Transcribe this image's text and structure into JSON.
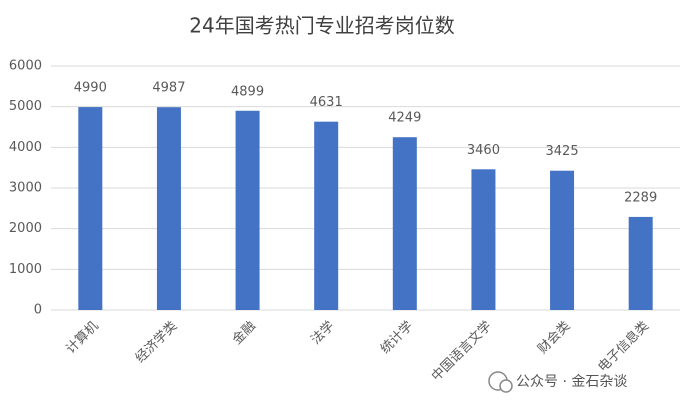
{
  "chart_data": {
    "type": "bar",
    "title": "24年国考热门专业招考岗位数",
    "categories": [
      "计算机",
      "经济学类",
      "金融",
      "法学",
      "统计学",
      "中国语言文学",
      "财会类",
      "电子信息类"
    ],
    "values": [
      4990,
      4987,
      4899,
      4631,
      4249,
      3460,
      3425,
      2289
    ],
    "color": "#4472c4",
    "ylim": [
      0,
      6000
    ],
    "yticks": [
      0,
      1000,
      2000,
      3000,
      4000,
      5000,
      6000
    ],
    "grid": true
  },
  "watermark": "公众号 · 金石杂谈"
}
